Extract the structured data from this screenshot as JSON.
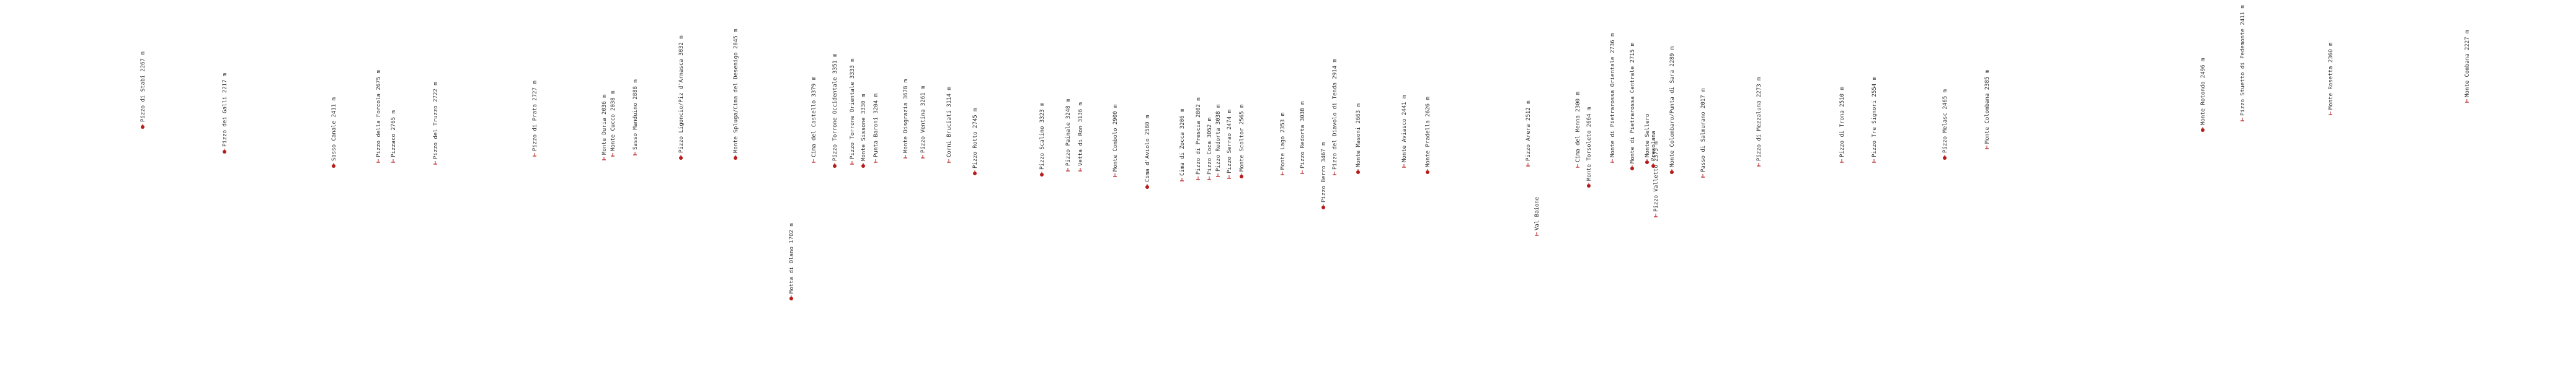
{
  "map": {
    "marker_color": "#b71c1c",
    "label_color": "#333333",
    "peaks": [
      {
        "name": "Pizzo di Stabi",
        "elevation": "2267 m",
        "kind": "dot"
      },
      {
        "name": "Pizzo dei Galli",
        "elevation": "2217 m",
        "kind": "dot"
      },
      {
        "name": "Sasso Canale",
        "elevation": "2411 m",
        "kind": "dot"
      },
      {
        "name": "Pizzo della Forcola",
        "elevation": "2675 m",
        "kind": "tick"
      },
      {
        "name": "Pizzaco",
        "elevation": "2765 m",
        "kind": "tick"
      },
      {
        "name": "Pizzo del Truzzo",
        "elevation": "2722 m",
        "kind": "tick"
      },
      {
        "name": "Pizzo di Prata",
        "elevation": "2727 m",
        "kind": "tick"
      },
      {
        "name": "Monte Duria",
        "elevation": "2036 m",
        "kind": "tick"
      },
      {
        "name": "Monte Cucco",
        "elevation": "2038 m",
        "kind": "tick"
      },
      {
        "name": "Sasso Manduino",
        "elevation": "2888 m",
        "kind": "tick"
      },
      {
        "name": "Pizzo Ligoncio/Piz d'Arnasca",
        "elevation": "3032 m",
        "kind": "dot"
      },
      {
        "name": "Monte Spluga/Cima del Desenigo",
        "elevation": "2845 m",
        "kind": "dot"
      },
      {
        "name": "Motta di Olano",
        "elevation": "1702 m",
        "kind": "dot"
      },
      {
        "name": "Cima del Castello",
        "elevation": "3379 m",
        "kind": "tick"
      },
      {
        "name": "Pizzo Torrone Occidentale",
        "elevation": "3351 m",
        "kind": "dot"
      },
      {
        "name": "Pizzo Torrone Orientale",
        "elevation": "3333 m",
        "kind": "tick"
      },
      {
        "name": "Monte Sissone",
        "elevation": "3330 m",
        "kind": "dot"
      },
      {
        "name": "Punta Baroni",
        "elevation": "3204 m",
        "kind": "tick"
      },
      {
        "name": "Monte Disgrazia",
        "elevation": "3678 m",
        "kind": "tick"
      },
      {
        "name": "Pizzo Ventina",
        "elevation": "3261 m",
        "kind": "tick"
      },
      {
        "name": "Corni Bruciati",
        "elevation": "3114 m",
        "kind": "tick"
      },
      {
        "name": "Pizzo Rotto",
        "elevation": "2745 m",
        "kind": "dot"
      },
      {
        "name": "Pizzo Scalino",
        "elevation": "3323 m",
        "kind": "dot"
      },
      {
        "name": "Pizzo Painale",
        "elevation": "3248 m",
        "kind": "tick"
      },
      {
        "name": "Vetta di Ron",
        "elevation": "3136 m",
        "kind": "tick"
      },
      {
        "name": "Monte Combolo",
        "elevation": "2900 m",
        "kind": "tick"
      },
      {
        "name": "Cima d'Aviolo",
        "elevation": "2580 m",
        "kind": "dot"
      },
      {
        "name": "Cima di Zocca",
        "elevation": "3206 m",
        "kind": "tick"
      },
      {
        "name": "Pizzo di Prescia",
        "elevation": "2802 m",
        "kind": "tick"
      },
      {
        "name": "Pizzo Coca",
        "elevation": "3052 m",
        "kind": "tick"
      },
      {
        "name": "Pizzo Redorta",
        "elevation": "3038 m",
        "kind": "tick"
      },
      {
        "name": "Pizzo Serrao",
        "elevation": "2474 m",
        "kind": "tick"
      },
      {
        "name": "Monte Scoltor",
        "elevation": "2565 m",
        "kind": "dot"
      },
      {
        "name": "Monte Lago",
        "elevation": "2353 m",
        "kind": "tick"
      },
      {
        "name": "Pizzo Redorta",
        "elevation": "3038 m",
        "kind": "tick"
      },
      {
        "name": "Pizzo Berro",
        "elevation": "3467 m",
        "kind": "dot"
      },
      {
        "name": "Pizzo del Diavolo di Tenda",
        "elevation": "2914 m",
        "kind": "tick"
      },
      {
        "name": "Monte Masoni",
        "elevation": "2663 m",
        "kind": "dot"
      },
      {
        "name": "Monte Aviasco",
        "elevation": "2441 m",
        "kind": "tick"
      },
      {
        "name": "Monte Pradella",
        "elevation": "2626 m",
        "kind": "dot"
      },
      {
        "name": "Pizzo Arera",
        "elevation": "2512 m",
        "kind": "tick"
      },
      {
        "name": "Val Baione",
        "elevation": "",
        "kind": "tick"
      },
      {
        "name": "Cima del Menna",
        "elevation": "2300 m",
        "kind": "tick"
      },
      {
        "name": "Monte Torsoleto",
        "elevation": "2664 m",
        "kind": "dot"
      },
      {
        "name": "Monte di Pietrarossa Orientale",
        "elevation": "2736 m",
        "kind": "tick"
      },
      {
        "name": "Monte di Pietrarossa Centrale",
        "elevation": "2715 m",
        "kind": "dot"
      },
      {
        "name": "Monte Sellero",
        "elevation": "",
        "kind": "dot"
      },
      {
        "name": "Pizzo Valletto",
        "elevation": "2375 m",
        "kind": "tick"
      },
      {
        "name": "Presolana",
        "elevation": "",
        "kind": "dot"
      },
      {
        "name": "Monte Colombaro/Punta di Sara",
        "elevation": "2289 m",
        "kind": "dot"
      },
      {
        "name": "Passo di Salmurano",
        "elevation": "2017 m",
        "kind": "tick"
      },
      {
        "name": "Pizzo di Mezzaluna",
        "elevation": "2273 m",
        "kind": "tick"
      },
      {
        "name": "Pizzo di Trona",
        "elevation": "2510 m",
        "kind": "tick"
      },
      {
        "name": "Pizzo Tre Signori",
        "elevation": "2554 m",
        "kind": "tick"
      },
      {
        "name": "Pizzo Melasc",
        "elevation": "2465 m",
        "kind": "dot"
      },
      {
        "name": "Monte Colombana",
        "elevation": "2385 m",
        "kind": "tick"
      },
      {
        "name": "Monte Rotondo",
        "elevation": "2496 m",
        "kind": "dot"
      },
      {
        "name": "Pizzo Stuetto di Pedemonte",
        "elevation": "2411 m",
        "kind": "tick"
      },
      {
        "name": "Monte Rosetta",
        "elevation": "2360 m",
        "kind": "tick"
      },
      {
        "name": "Monte Combana",
        "elevation": "2227 m",
        "kind": "tick"
      }
    ]
  }
}
